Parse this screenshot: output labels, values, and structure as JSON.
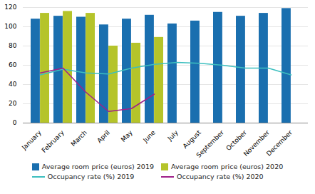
{
  "chart_data": {
    "type": "bar",
    "categories": [
      "January",
      "February",
      "March",
      "April",
      "May",
      "June",
      "July",
      "August",
      "September",
      "October",
      "November",
      "December"
    ],
    "series": [
      {
        "name": "Average room price (euros) 2019",
        "type": "bar",
        "color": "#1a6faf",
        "values": [
          108,
          111,
          110,
          102,
          108,
          112,
          103,
          106,
          115,
          111,
          114,
          119
        ]
      },
      {
        "name": "Average room price (euros) 2020",
        "type": "bar",
        "color": "#b5c42a",
        "values": [
          114,
          116,
          114,
          80,
          83,
          89,
          null,
          null,
          null,
          null,
          null,
          null
        ]
      },
      {
        "name": "Occupancy rate (%) 2019",
        "type": "line",
        "color": "#3dbfbf",
        "values": [
          50,
          56,
          52,
          51,
          57,
          61,
          63,
          62,
          60,
          57,
          57,
          50
        ]
      },
      {
        "name": "Occupancy rate (%) 2020",
        "type": "line",
        "color": "#a0208a",
        "values": [
          52,
          57,
          32,
          12,
          15,
          30,
          null,
          null,
          null,
          null,
          null,
          null
        ]
      }
    ],
    "ylim": [
      0,
      120
    ],
    "yticks": [
      0,
      20,
      40,
      60,
      80,
      100,
      120
    ],
    "grid": true,
    "legend": "bottom"
  }
}
